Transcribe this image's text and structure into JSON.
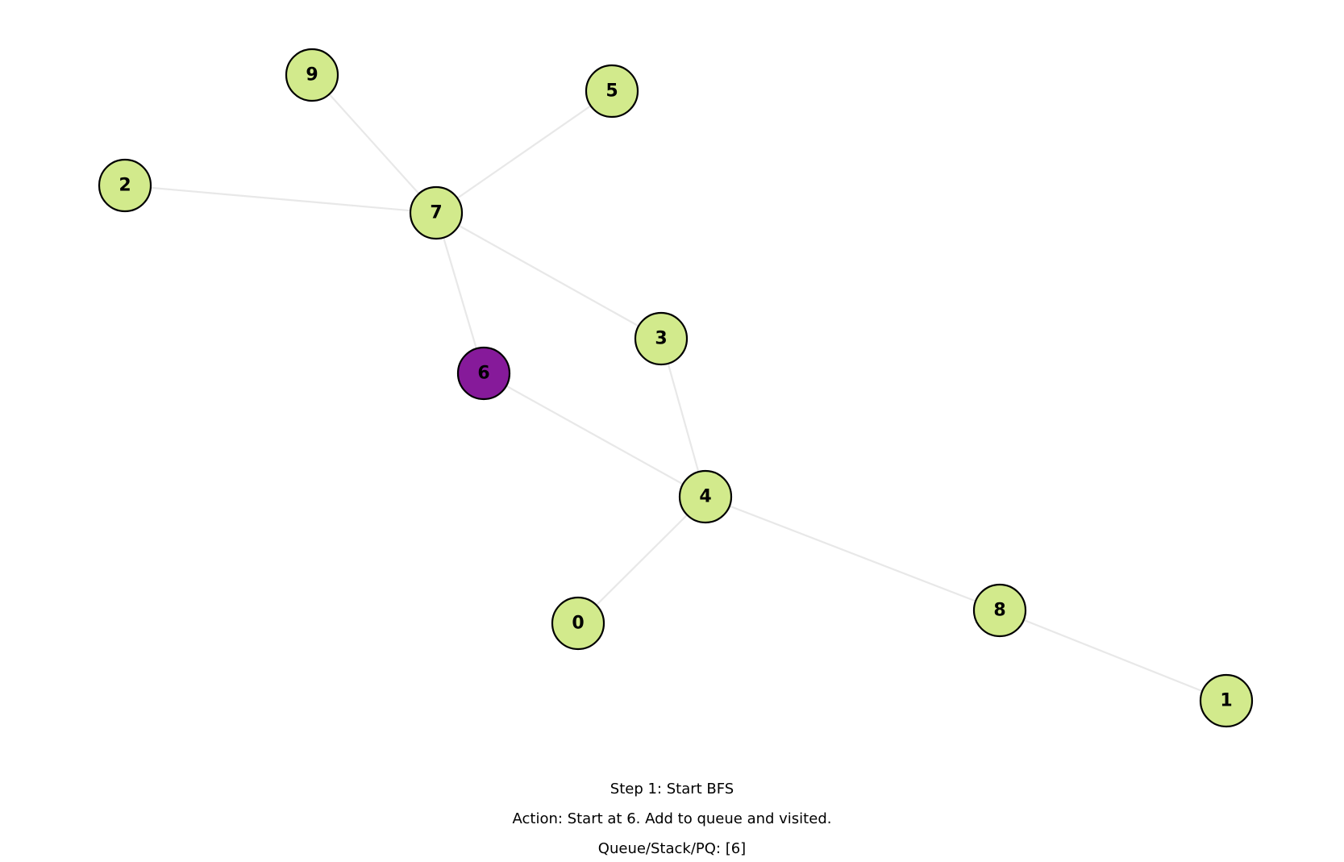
{
  "colors": {
    "unvisited_fill": "#d2ea8c",
    "active_fill": "#861a9a",
    "edge": "#e8e8e8",
    "node_border": "#000000",
    "label": "#000000"
  },
  "graph": {
    "nodes": [
      {
        "id": "0",
        "state": "unvisited"
      },
      {
        "id": "1",
        "state": "unvisited"
      },
      {
        "id": "2",
        "state": "unvisited"
      },
      {
        "id": "3",
        "state": "unvisited"
      },
      {
        "id": "4",
        "state": "unvisited"
      },
      {
        "id": "5",
        "state": "unvisited"
      },
      {
        "id": "6",
        "state": "active"
      },
      {
        "id": "7",
        "state": "unvisited"
      },
      {
        "id": "8",
        "state": "unvisited"
      },
      {
        "id": "9",
        "state": "unvisited"
      }
    ],
    "edges": [
      [
        "9",
        "7"
      ],
      [
        "5",
        "7"
      ],
      [
        "2",
        "7"
      ],
      [
        "7",
        "6"
      ],
      [
        "7",
        "3"
      ],
      [
        "3",
        "4"
      ],
      [
        "6",
        "4"
      ],
      [
        "4",
        "0"
      ],
      [
        "4",
        "8"
      ],
      [
        "8",
        "1"
      ]
    ]
  },
  "caption": {
    "step": "Step 1: Start BFS",
    "action": "Action: Start at 6. Add to queue and visited.",
    "queue": "Queue/Stack/PQ: [6]"
  }
}
